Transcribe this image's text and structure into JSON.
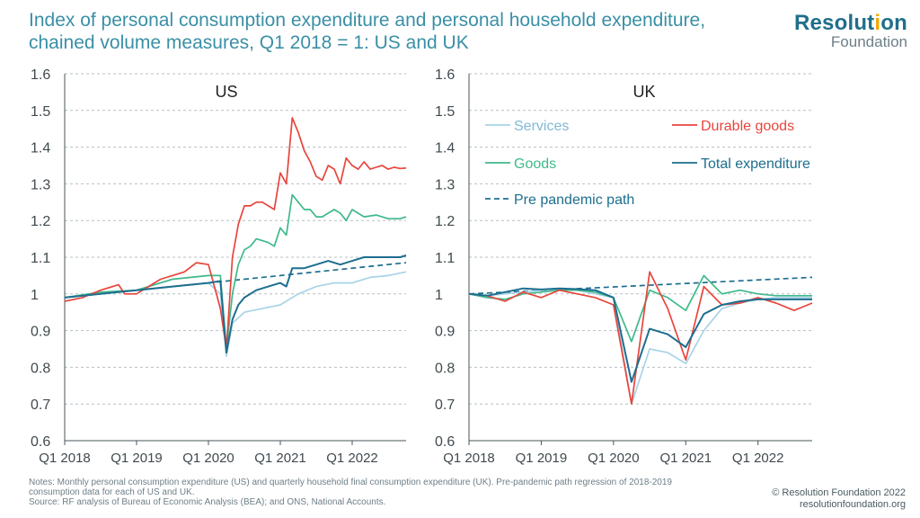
{
  "header": {
    "title": "Index of personal consumption expenditure and personal household expenditure, chained volume measures, Q1 2018 = 1: US and UK"
  },
  "logo": {
    "word_main": "Resolution",
    "word_sub": "Foundation",
    "accent_color": "#f2a900",
    "brand_color": "#1f6f8b"
  },
  "notes": {
    "line1": "Notes: Monthly personal consumption expenditure (US) and quarterly household final consumption expenditure (UK). Pre-pandemic path regression of 2018-2019 consumption data for each of US and UK.",
    "line2": "Source: RF analysis of Bureau of Economic Analysis (BEA); and ONS, National Accounts."
  },
  "footer": {
    "copyright": "© Resolution Foundation 2022",
    "website": "resolutionfoundation.org"
  },
  "chart_data": [
    {
      "type": "line",
      "panel_label": "US",
      "ylim": [
        0.6,
        1.6
      ],
      "yticks": [
        0.6,
        0.7,
        0.8,
        0.9,
        1,
        1.1,
        1.2,
        1.3,
        1.4,
        1.5,
        1.6
      ],
      "x_tick_labels": [
        "Q1 2018",
        "Q1 2019",
        "Q1 2020",
        "Q1 2021",
        "Q1 2022"
      ],
      "x_unit": "month index from Jan 2018",
      "x_range": [
        0,
        57
      ],
      "grid": true,
      "series": [
        {
          "key": "services",
          "color": "#a9d3e8",
          "dashed": false,
          "x": [
            0,
            6,
            12,
            18,
            24,
            26,
            27,
            28,
            30,
            33,
            36,
            39,
            42,
            45,
            48,
            51,
            54,
            57
          ],
          "y": [
            0.99,
            1.0,
            1.01,
            1.02,
            1.03,
            1.0,
            0.83,
            0.92,
            0.95,
            0.96,
            0.97,
            1.0,
            1.02,
            1.03,
            1.03,
            1.045,
            1.05,
            1.06
          ]
        },
        {
          "key": "durable",
          "color": "#e8453c",
          "dashed": false,
          "x": [
            0,
            3,
            6,
            9,
            10,
            12,
            14,
            16,
            18,
            20,
            22,
            24,
            26,
            27,
            28,
            29,
            30,
            31,
            32,
            33,
            34,
            35,
            36,
            37,
            38,
            39,
            40,
            41,
            42,
            43,
            44,
            45,
            46,
            47,
            48,
            49,
            50,
            51,
            52,
            53,
            54,
            55,
            56,
            57
          ],
          "y": [
            0.98,
            0.99,
            1.01,
            1.025,
            1.0,
            1.0,
            1.02,
            1.04,
            1.05,
            1.06,
            1.085,
            1.08,
            0.96,
            0.85,
            1.1,
            1.19,
            1.24,
            1.24,
            1.25,
            1.25,
            1.24,
            1.23,
            1.33,
            1.3,
            1.48,
            1.44,
            1.39,
            1.36,
            1.32,
            1.31,
            1.35,
            1.34,
            1.3,
            1.37,
            1.35,
            1.34,
            1.36,
            1.34,
            1.345,
            1.35,
            1.34,
            1.345,
            1.342,
            1.343
          ]
        },
        {
          "key": "goods",
          "color": "#3fb98a",
          "dashed": false,
          "x": [
            0,
            6,
            12,
            18,
            24,
            26,
            27,
            28,
            29,
            30,
            31,
            32,
            33,
            34,
            35,
            36,
            37,
            38,
            39,
            40,
            41,
            42,
            43,
            44,
            45,
            46,
            47,
            48,
            50,
            52,
            54,
            56,
            57
          ],
          "y": [
            0.99,
            1.005,
            1.01,
            1.04,
            1.05,
            1.05,
            0.85,
            1.0,
            1.08,
            1.12,
            1.13,
            1.15,
            1.145,
            1.14,
            1.13,
            1.18,
            1.16,
            1.27,
            1.25,
            1.23,
            1.23,
            1.21,
            1.21,
            1.22,
            1.23,
            1.22,
            1.2,
            1.23,
            1.21,
            1.215,
            1.205,
            1.205,
            1.21
          ]
        },
        {
          "key": "total",
          "color": "#1d6e8e",
          "dashed": false,
          "x": [
            0,
            6,
            12,
            18,
            24,
            26,
            27,
            28,
            29,
            30,
            32,
            34,
            36,
            37,
            38,
            40,
            42,
            44,
            46,
            48,
            50,
            52,
            54,
            56,
            57
          ],
          "y": [
            0.99,
            1.0,
            1.01,
            1.02,
            1.03,
            1.035,
            0.84,
            0.93,
            0.97,
            0.99,
            1.01,
            1.02,
            1.03,
            1.02,
            1.07,
            1.07,
            1.08,
            1.09,
            1.08,
            1.09,
            1.1,
            1.1,
            1.1,
            1.1,
            1.105
          ]
        },
        {
          "key": "pre_pandemic",
          "color": "#1d6e8e",
          "dashed": true,
          "x": [
            0,
            57
          ],
          "y": [
            0.99,
            1.085
          ]
        }
      ]
    },
    {
      "type": "line",
      "panel_label": "UK",
      "ylim": [
        0.6,
        1.6
      ],
      "yticks": [
        0.6,
        0.7,
        0.8,
        0.9,
        1,
        1.1,
        1.2,
        1.3,
        1.4,
        1.5,
        1.6
      ],
      "x_tick_labels": [
        "Q1 2018",
        "Q1 2019",
        "Q1 2020",
        "Q1 2021",
        "Q1 2022"
      ],
      "x_unit": "quarter index from Q1 2018",
      "x_range": [
        0,
        19
      ],
      "grid": true,
      "series": [
        {
          "key": "services",
          "name": "Services",
          "color": "#a9d3e8",
          "dashed": false,
          "x": [
            0,
            1,
            2,
            3,
            4,
            5,
            6,
            7,
            8,
            9,
            10,
            11,
            12,
            13,
            14,
            15,
            16,
            17,
            18,
            19
          ],
          "y": [
            1.0,
            0.995,
            1.0,
            1.005,
            1.01,
            1.012,
            1.01,
            1.0,
            0.99,
            0.7,
            0.85,
            0.84,
            0.81,
            0.9,
            0.96,
            0.975,
            0.985,
            0.99,
            0.99,
            0.99
          ]
        },
        {
          "key": "durable",
          "name": "Durable goods",
          "color": "#e8453c",
          "dashed": false,
          "x": [
            0,
            1,
            2,
            3,
            4,
            5,
            6,
            7,
            8,
            9,
            10,
            11,
            12,
            13,
            14,
            15,
            16,
            17,
            18,
            19
          ],
          "y": [
            1.0,
            0.995,
            0.98,
            1.005,
            0.99,
            1.01,
            1.0,
            0.99,
            0.97,
            0.7,
            1.06,
            0.96,
            0.82,
            1.02,
            0.97,
            0.975,
            0.99,
            0.975,
            0.955,
            0.975
          ]
        },
        {
          "key": "goods",
          "name": "Goods",
          "color": "#3fb98a",
          "dashed": false,
          "x": [
            0,
            1,
            2,
            3,
            4,
            5,
            6,
            7,
            8,
            9,
            10,
            11,
            12,
            13,
            14,
            15,
            16,
            17,
            18,
            19
          ],
          "y": [
            1.0,
            0.99,
            0.985,
            1.0,
            1.005,
            1.01,
            1.01,
            1.005,
            0.99,
            0.87,
            1.01,
            0.99,
            0.955,
            1.05,
            1.0,
            1.01,
            1.0,
            0.995,
            0.995,
            0.995
          ]
        },
        {
          "key": "total",
          "name": "Total expenditure",
          "color": "#1d6e8e",
          "dashed": false,
          "x": [
            0,
            1,
            2,
            3,
            4,
            5,
            6,
            7,
            8,
            9,
            10,
            11,
            12,
            13,
            14,
            15,
            16,
            17,
            18,
            19
          ],
          "y": [
            1.0,
            0.995,
            1.005,
            1.015,
            1.012,
            1.015,
            1.013,
            1.01,
            0.99,
            0.76,
            0.905,
            0.89,
            0.855,
            0.945,
            0.97,
            0.98,
            0.985,
            0.985,
            0.985,
            0.985
          ]
        },
        {
          "key": "pre_pandemic",
          "name": "Pre pandemic path",
          "color": "#1d6e8e",
          "dashed": true,
          "x": [
            0,
            19
          ],
          "y": [
            1.0,
            1.045
          ]
        }
      ],
      "legend_placement": "top, two columns"
    }
  ]
}
